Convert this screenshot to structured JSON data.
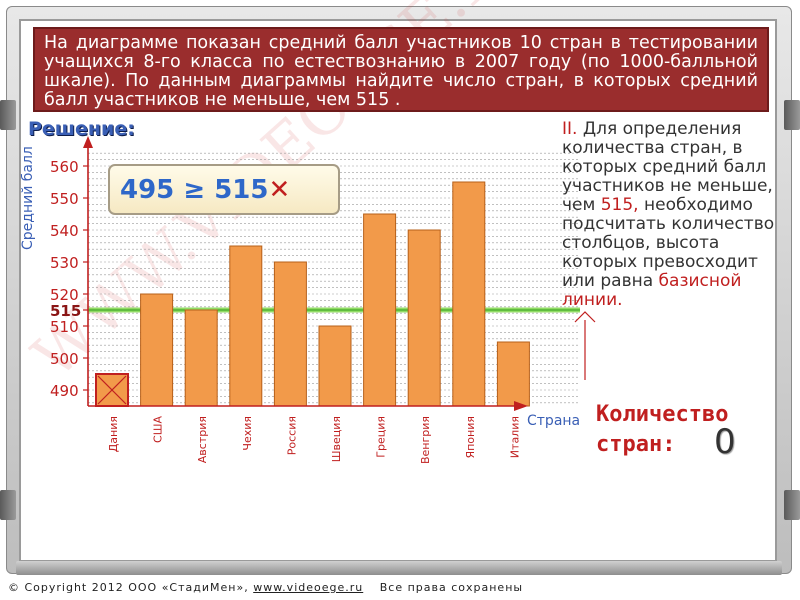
{
  "problem": {
    "text": "На диаграмме показан средний балл участников 10 стран в тестировании учащихся 8-го класса по естествознанию в 2007 году (по 1000-балльной шкале). По данным диаграммы найдите число стран, в которых средний балл участников не меньше, чем 515 ."
  },
  "solution": {
    "title": "Решение:"
  },
  "formula": {
    "left": "495",
    "op": "≥",
    "right": "515",
    "mark": "✕"
  },
  "explanation": {
    "roman": "II.",
    "part1": "Для определения количества стран, в которых средний балл участников не меньше, чем",
    "value": "515,",
    "part2": "необходимо подсчитать количество столбцов, высота которых превосходит или равна",
    "part3": "базисной линии."
  },
  "result": {
    "label_line1": "Количество",
    "label_line2": "стран:",
    "value": "0"
  },
  "footer": {
    "copyright": "© Copyright 2012 ООО «СтадиМен»,",
    "url": "www.videoege.ru",
    "rights": "Все права сохранены"
  },
  "watermark": "WWW.VIDEOEGE.RU",
  "colors": {
    "bar_fill": "#f29a4a",
    "bar_stroke": "#b7601a",
    "axis": "#c01f1f",
    "baseline": "#7ed64b",
    "highlight_bar_stroke": "#c01f1f"
  },
  "chart_data": {
    "type": "bar",
    "xlabel": "Страна",
    "ylabel": "Средний балл",
    "categories": [
      "Дания",
      "США",
      "Австрия",
      "Чехия",
      "Россия",
      "Швеция",
      "Греция",
      "Венгрия",
      "Япония",
      "Италия"
    ],
    "values": [
      495,
      520,
      515,
      535,
      530,
      510,
      545,
      540,
      555,
      505
    ],
    "ylim": [
      485,
      565
    ],
    "yticks": [
      490,
      500,
      510,
      515,
      520,
      530,
      540,
      550,
      560
    ],
    "baseline": 515,
    "highlighted_category": "Дания",
    "grid": true
  }
}
